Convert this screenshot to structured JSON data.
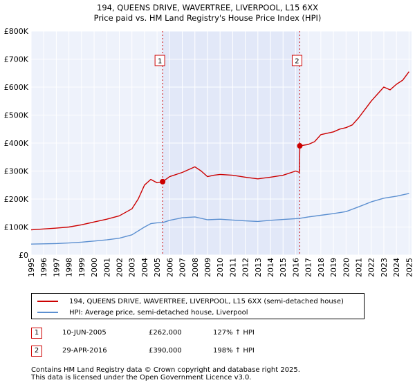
{
  "chart_data": {
    "type": "line",
    "title": "194, QUEENS DRIVE, WAVERTREE, LIVERPOOL, L15 6XX",
    "subtitle": "Price paid vs. HM Land Registry's House Price Index (HPI)",
    "xlim": [
      1995,
      2025.2
    ],
    "ylim": [
      0,
      800000
    ],
    "x_ticks": [
      1995,
      1996,
      1997,
      1998,
      1999,
      2000,
      2001,
      2002,
      2003,
      2004,
      2005,
      2006,
      2007,
      2008,
      2009,
      2010,
      2011,
      2012,
      2013,
      2014,
      2015,
      2016,
      2017,
      2018,
      2019,
      2020,
      2021,
      2022,
      2023,
      2024,
      2025
    ],
    "y_ticks": [
      {
        "value": 0,
        "label": "£0"
      },
      {
        "value": 100000,
        "label": "£100K"
      },
      {
        "value": 200000,
        "label": "£200K"
      },
      {
        "value": 300000,
        "label": "£300K"
      },
      {
        "value": 400000,
        "label": "£400K"
      },
      {
        "value": 500000,
        "label": "£500K"
      },
      {
        "value": 600000,
        "label": "£600K"
      },
      {
        "value": 700000,
        "label": "£700K"
      },
      {
        "value": 800000,
        "label": "£800K"
      }
    ],
    "shaded_range": [
      2005.44,
      2016.33
    ],
    "series": [
      {
        "name": "194, QUEENS DRIVE, WAVERTREE, LIVERPOOL, L15 6XX (semi-detached house)",
        "color": "#cc0000",
        "x": [
          1995,
          1996,
          1997,
          1998,
          1999,
          2000,
          2001,
          2002,
          2003,
          2003.5,
          2004,
          2004.5,
          2005,
          2005.44,
          2006,
          2007,
          2007.5,
          2008,
          2008.5,
          2009,
          2009.5,
          2010,
          2011,
          2012,
          2013,
          2014,
          2015,
          2016,
          2016.3,
          2016.33,
          2017,
          2017.5,
          2018,
          2019,
          2019.5,
          2020,
          2020.5,
          2021,
          2021.5,
          2022,
          2022.5,
          2023,
          2023.5,
          2024,
          2024.5,
          2025
        ],
        "y": [
          90000,
          93000,
          96000,
          100000,
          108000,
          118000,
          128000,
          140000,
          165000,
          200000,
          250000,
          270000,
          258000,
          262000,
          280000,
          295000,
          305000,
          315000,
          300000,
          280000,
          285000,
          288000,
          285000,
          278000,
          272000,
          278000,
          285000,
          300000,
          295000,
          390000,
          395000,
          405000,
          430000,
          440000,
          450000,
          455000,
          465000,
          490000,
          520000,
          550000,
          575000,
          600000,
          590000,
          610000,
          625000,
          655000
        ]
      },
      {
        "name": "HPI: Average price, semi-detached house, Liverpool",
        "color": "#5b8fd0",
        "x": [
          1995,
          1996,
          1997,
          1998,
          1999,
          2000,
          2001,
          2002,
          2003,
          2004,
          2004.5,
          2005,
          2005.44,
          2006,
          2007,
          2008,
          2009,
          2010,
          2011,
          2012,
          2013,
          2014,
          2015,
          2016,
          2016.33,
          2017,
          2018,
          2019,
          2020,
          2021,
          2022,
          2023,
          2024,
          2025
        ],
        "y": [
          39000,
          40000,
          41000,
          43000,
          46000,
          50000,
          54000,
          60000,
          72000,
          100000,
          112000,
          115000,
          115500,
          124000,
          133000,
          136000,
          126000,
          128000,
          125000,
          122000,
          120000,
          124000,
          127000,
          130000,
          131000,
          136000,
          142000,
          148000,
          155000,
          172000,
          190000,
          203000,
          210000,
          220000
        ]
      }
    ],
    "annotations": [
      {
        "label": "1",
        "x": 2005.44
      },
      {
        "label": "2",
        "x": 2016.33
      }
    ],
    "sale_points": [
      {
        "x": 2005.44,
        "y": 262000
      },
      {
        "x": 2016.33,
        "y": 390000
      }
    ]
  },
  "legend": {
    "items": [
      {
        "label": "194, QUEENS DRIVE, WAVERTREE, LIVERPOOL, L15 6XX (semi-detached house)",
        "color": "#cc0000"
      },
      {
        "label": "HPI: Average price, semi-detached house, Liverpool",
        "color": "#5b8fd0"
      }
    ]
  },
  "sales": [
    {
      "num": "1",
      "date": "10-JUN-2005",
      "price": "£262,000",
      "hpi": "127% ↑ HPI"
    },
    {
      "num": "2",
      "date": "29-APR-2016",
      "price": "£390,000",
      "hpi": "198% ↑ HPI"
    }
  ],
  "footer": {
    "line1": "Contains HM Land Registry data © Crown copyright and database right 2025.",
    "line2": "This data is licensed under the Open Government Licence v3.0."
  }
}
